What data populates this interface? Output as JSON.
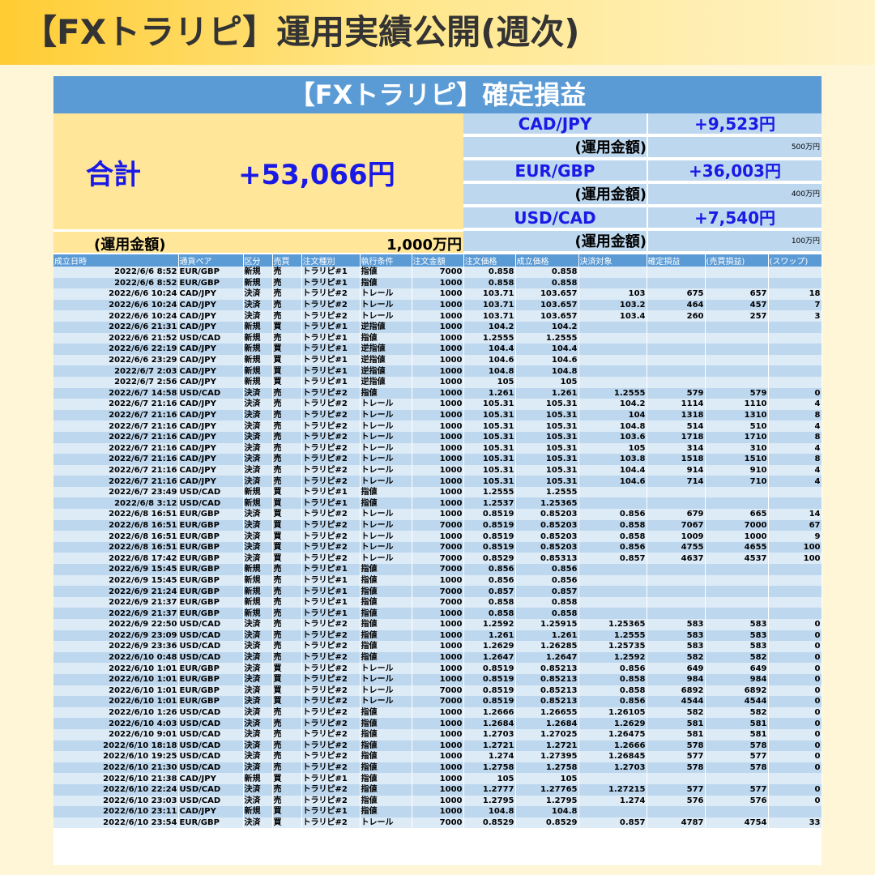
{
  "title": "【FXトラリピ】運用実績公開(週次)",
  "card_title": "【FXトラリピ】確定損益",
  "total": {
    "label": "合計",
    "value": "+53,066円",
    "amount_label": "(運用金額)",
    "amount_value": "1,000万円"
  },
  "pairs": [
    {
      "name": "CAD/JPY",
      "pnl": "+9,523円",
      "amount_label": "(運用金額)",
      "amount_value": "500万円"
    },
    {
      "name": "EUR/GBP",
      "pnl": "+36,003円",
      "amount_label": "(運用金額)",
      "amount_value": "400万円"
    },
    {
      "name": "USD/CAD",
      "pnl": "+7,540円",
      "amount_label": "(運用金額)",
      "amount_value": "100万円"
    }
  ],
  "table": {
    "headers": [
      "成立日時",
      "通貨ペア",
      "区分",
      "売買",
      "注文種別",
      "執行条件",
      "注文金額",
      "注文価格",
      "成立価格",
      "決済対象",
      "確定損益",
      "(売買損益)",
      "(スワップ)"
    ],
    "rows": [
      [
        "2022/6/6 8:52",
        "EUR/GBP",
        "新規",
        "売",
        "トラリピ#1",
        "指値",
        "7000",
        "0.858",
        "0.858",
        "",
        "",
        "",
        ""
      ],
      [
        "2022/6/6 8:52",
        "EUR/GBP",
        "新規",
        "売",
        "トラリピ#1",
        "指値",
        "1000",
        "0.858",
        "0.858",
        "",
        "",
        "",
        ""
      ],
      [
        "2022/6/6 10:24",
        "CAD/JPY",
        "決済",
        "売",
        "トラリピ#2",
        "トレール",
        "1000",
        "103.71",
        "103.657",
        "103",
        "675",
        "657",
        "18"
      ],
      [
        "2022/6/6 10:24",
        "CAD/JPY",
        "決済",
        "売",
        "トラリピ#2",
        "トレール",
        "1000",
        "103.71",
        "103.657",
        "103.2",
        "464",
        "457",
        "7"
      ],
      [
        "2022/6/6 10:24",
        "CAD/JPY",
        "決済",
        "売",
        "トラリピ#2",
        "トレール",
        "1000",
        "103.71",
        "103.657",
        "103.4",
        "260",
        "257",
        "3"
      ],
      [
        "2022/6/6 21:31",
        "CAD/JPY",
        "新規",
        "買",
        "トラリピ#1",
        "逆指値",
        "1000",
        "104.2",
        "104.2",
        "",
        "",
        "",
        ""
      ],
      [
        "2022/6/6 21:52",
        "USD/CAD",
        "新規",
        "売",
        "トラリピ#1",
        "指値",
        "1000",
        "1.2555",
        "1.2555",
        "",
        "",
        "",
        ""
      ],
      [
        "2022/6/6 22:19",
        "CAD/JPY",
        "新規",
        "買",
        "トラリピ#1",
        "逆指値",
        "1000",
        "104.4",
        "104.4",
        "",
        "",
        "",
        ""
      ],
      [
        "2022/6/6 23:29",
        "CAD/JPY",
        "新規",
        "買",
        "トラリピ#1",
        "逆指値",
        "1000",
        "104.6",
        "104.6",
        "",
        "",
        "",
        ""
      ],
      [
        "2022/6/7 2:03",
        "CAD/JPY",
        "新規",
        "買",
        "トラリピ#1",
        "逆指値",
        "1000",
        "104.8",
        "104.8",
        "",
        "",
        "",
        ""
      ],
      [
        "2022/6/7 2:56",
        "CAD/JPY",
        "新規",
        "買",
        "トラリピ#1",
        "逆指値",
        "1000",
        "105",
        "105",
        "",
        "",
        "",
        ""
      ],
      [
        "2022/6/7 14:58",
        "USD/CAD",
        "決済",
        "売",
        "トラリピ#2",
        "指値",
        "1000",
        "1.261",
        "1.261",
        "1.2555",
        "579",
        "579",
        "0"
      ],
      [
        "2022/6/7 21:16",
        "CAD/JPY",
        "決済",
        "売",
        "トラリピ#2",
        "トレール",
        "1000",
        "105.31",
        "105.31",
        "104.2",
        "1114",
        "1110",
        "4"
      ],
      [
        "2022/6/7 21:16",
        "CAD/JPY",
        "決済",
        "売",
        "トラリピ#2",
        "トレール",
        "1000",
        "105.31",
        "105.31",
        "104",
        "1318",
        "1310",
        "8"
      ],
      [
        "2022/6/7 21:16",
        "CAD/JPY",
        "決済",
        "売",
        "トラリピ#2",
        "トレール",
        "1000",
        "105.31",
        "105.31",
        "104.8",
        "514",
        "510",
        "4"
      ],
      [
        "2022/6/7 21:16",
        "CAD/JPY",
        "決済",
        "売",
        "トラリピ#2",
        "トレール",
        "1000",
        "105.31",
        "105.31",
        "103.6",
        "1718",
        "1710",
        "8"
      ],
      [
        "2022/6/7 21:16",
        "CAD/JPY",
        "決済",
        "売",
        "トラリピ#2",
        "トレール",
        "1000",
        "105.31",
        "105.31",
        "105",
        "314",
        "310",
        "4"
      ],
      [
        "2022/6/7 21:16",
        "CAD/JPY",
        "決済",
        "売",
        "トラリピ#2",
        "トレール",
        "1000",
        "105.31",
        "105.31",
        "103.8",
        "1518",
        "1510",
        "8"
      ],
      [
        "2022/6/7 21:16",
        "CAD/JPY",
        "決済",
        "売",
        "トラリピ#2",
        "トレール",
        "1000",
        "105.31",
        "105.31",
        "104.4",
        "914",
        "910",
        "4"
      ],
      [
        "2022/6/7 21:16",
        "CAD/JPY",
        "決済",
        "売",
        "トラリピ#2",
        "トレール",
        "1000",
        "105.31",
        "105.31",
        "104.6",
        "714",
        "710",
        "4"
      ],
      [
        "2022/6/7 23:49",
        "USD/CAD",
        "新規",
        "買",
        "トラリピ#1",
        "指値",
        "1000",
        "1.2555",
        "1.2555",
        "",
        "",
        "",
        ""
      ],
      [
        "2022/6/8 3:12",
        "USD/CAD",
        "新規",
        "買",
        "トラリピ#1",
        "指値",
        "1000",
        "1.2537",
        "1.25365",
        "",
        "",
        "",
        ""
      ],
      [
        "2022/6/8 16:51",
        "EUR/GBP",
        "決済",
        "買",
        "トラリピ#2",
        "トレール",
        "1000",
        "0.8519",
        "0.85203",
        "0.856",
        "679",
        "665",
        "14"
      ],
      [
        "2022/6/8 16:51",
        "EUR/GBP",
        "決済",
        "買",
        "トラリピ#2",
        "トレール",
        "7000",
        "0.8519",
        "0.85203",
        "0.858",
        "7067",
        "7000",
        "67"
      ],
      [
        "2022/6/8 16:51",
        "EUR/GBP",
        "決済",
        "買",
        "トラリピ#2",
        "トレール",
        "1000",
        "0.8519",
        "0.85203",
        "0.858",
        "1009",
        "1000",
        "9"
      ],
      [
        "2022/6/8 16:51",
        "EUR/GBP",
        "決済",
        "買",
        "トラリピ#2",
        "トレール",
        "7000",
        "0.8519",
        "0.85203",
        "0.856",
        "4755",
        "4655",
        "100"
      ],
      [
        "2022/6/8 17:42",
        "EUR/GBP",
        "決済",
        "買",
        "トラリピ#2",
        "トレール",
        "7000",
        "0.8529",
        "0.85313",
        "0.857",
        "4637",
        "4537",
        "100"
      ],
      [
        "2022/6/9 15:45",
        "EUR/GBP",
        "新規",
        "売",
        "トラリピ#1",
        "指値",
        "7000",
        "0.856",
        "0.856",
        "",
        "",
        "",
        ""
      ],
      [
        "2022/6/9 15:45",
        "EUR/GBP",
        "新規",
        "売",
        "トラリピ#1",
        "指値",
        "1000",
        "0.856",
        "0.856",
        "",
        "",
        "",
        ""
      ],
      [
        "2022/6/9 21:24",
        "EUR/GBP",
        "新規",
        "売",
        "トラリピ#1",
        "指値",
        "7000",
        "0.857",
        "0.857",
        "",
        "",
        "",
        ""
      ],
      [
        "2022/6/9 21:37",
        "EUR/GBP",
        "新規",
        "売",
        "トラリピ#1",
        "指値",
        "7000",
        "0.858",
        "0.858",
        "",
        "",
        "",
        ""
      ],
      [
        "2022/6/9 21:37",
        "EUR/GBP",
        "新規",
        "売",
        "トラリピ#1",
        "指値",
        "1000",
        "0.858",
        "0.858",
        "",
        "",
        "",
        ""
      ],
      [
        "2022/6/9 22:50",
        "USD/CAD",
        "決済",
        "売",
        "トラリピ#2",
        "指値",
        "1000",
        "1.2592",
        "1.25915",
        "1.25365",
        "583",
        "583",
        "0"
      ],
      [
        "2022/6/9 23:09",
        "USD/CAD",
        "決済",
        "売",
        "トラリピ#2",
        "指値",
        "1000",
        "1.261",
        "1.261",
        "1.2555",
        "583",
        "583",
        "0"
      ],
      [
        "2022/6/9 23:36",
        "USD/CAD",
        "決済",
        "売",
        "トラリピ#2",
        "指値",
        "1000",
        "1.2629",
        "1.26285",
        "1.25735",
        "583",
        "583",
        "0"
      ],
      [
        "2022/6/10 0:48",
        "USD/CAD",
        "決済",
        "売",
        "トラリピ#2",
        "指値",
        "1000",
        "1.2647",
        "1.2647",
        "1.2592",
        "582",
        "582",
        "0"
      ],
      [
        "2022/6/10 1:01",
        "EUR/GBP",
        "決済",
        "買",
        "トラリピ#2",
        "トレール",
        "1000",
        "0.8519",
        "0.85213",
        "0.856",
        "649",
        "649",
        "0"
      ],
      [
        "2022/6/10 1:01",
        "EUR/GBP",
        "決済",
        "買",
        "トラリピ#2",
        "トレール",
        "1000",
        "0.8519",
        "0.85213",
        "0.858",
        "984",
        "984",
        "0"
      ],
      [
        "2022/6/10 1:01",
        "EUR/GBP",
        "決済",
        "買",
        "トラリピ#2",
        "トレール",
        "7000",
        "0.8519",
        "0.85213",
        "0.858",
        "6892",
        "6892",
        "0"
      ],
      [
        "2022/6/10 1:01",
        "EUR/GBP",
        "決済",
        "買",
        "トラリピ#2",
        "トレール",
        "7000",
        "0.8519",
        "0.85213",
        "0.856",
        "4544",
        "4544",
        "0"
      ],
      [
        "2022/6/10 1:26",
        "USD/CAD",
        "決済",
        "売",
        "トラリピ#2",
        "指値",
        "1000",
        "1.2666",
        "1.26655",
        "1.26105",
        "582",
        "582",
        "0"
      ],
      [
        "2022/6/10 4:03",
        "USD/CAD",
        "決済",
        "売",
        "トラリピ#2",
        "指値",
        "1000",
        "1.2684",
        "1.2684",
        "1.2629",
        "581",
        "581",
        "0"
      ],
      [
        "2022/6/10 9:01",
        "USD/CAD",
        "決済",
        "売",
        "トラリピ#2",
        "指値",
        "1000",
        "1.2703",
        "1.27025",
        "1.26475",
        "581",
        "581",
        "0"
      ],
      [
        "2022/6/10 18:18",
        "USD/CAD",
        "決済",
        "売",
        "トラリピ#2",
        "指値",
        "1000",
        "1.2721",
        "1.2721",
        "1.2666",
        "578",
        "578",
        "0"
      ],
      [
        "2022/6/10 19:25",
        "USD/CAD",
        "決済",
        "売",
        "トラリピ#2",
        "指値",
        "1000",
        "1.274",
        "1.27395",
        "1.26845",
        "577",
        "577",
        "0"
      ],
      [
        "2022/6/10 21:30",
        "USD/CAD",
        "決済",
        "売",
        "トラリピ#2",
        "指値",
        "1000",
        "1.2758",
        "1.2758",
        "1.2703",
        "578",
        "578",
        "0"
      ],
      [
        "2022/6/10 21:38",
        "CAD/JPY",
        "新規",
        "買",
        "トラリピ#1",
        "指値",
        "1000",
        "105",
        "105",
        "",
        "",
        "",
        ""
      ],
      [
        "2022/6/10 22:24",
        "USD/CAD",
        "決済",
        "売",
        "トラリピ#2",
        "指値",
        "1000",
        "1.2777",
        "1.27765",
        "1.27215",
        "577",
        "577",
        "0"
      ],
      [
        "2022/6/10 23:03",
        "USD/CAD",
        "決済",
        "売",
        "トラリピ#2",
        "指値",
        "1000",
        "1.2795",
        "1.2795",
        "1.274",
        "576",
        "576",
        "0"
      ],
      [
        "2022/6/10 23:11",
        "CAD/JPY",
        "新規",
        "買",
        "トラリピ#1",
        "指値",
        "1000",
        "104.8",
        "104.8",
        "",
        "",
        "",
        ""
      ],
      [
        "2022/6/10 23:54",
        "EUR/GBP",
        "決済",
        "買",
        "トラリピ#2",
        "トレール",
        "7000",
        "0.8529",
        "0.8529",
        "0.857",
        "4787",
        "4754",
        "33"
      ]
    ]
  }
}
